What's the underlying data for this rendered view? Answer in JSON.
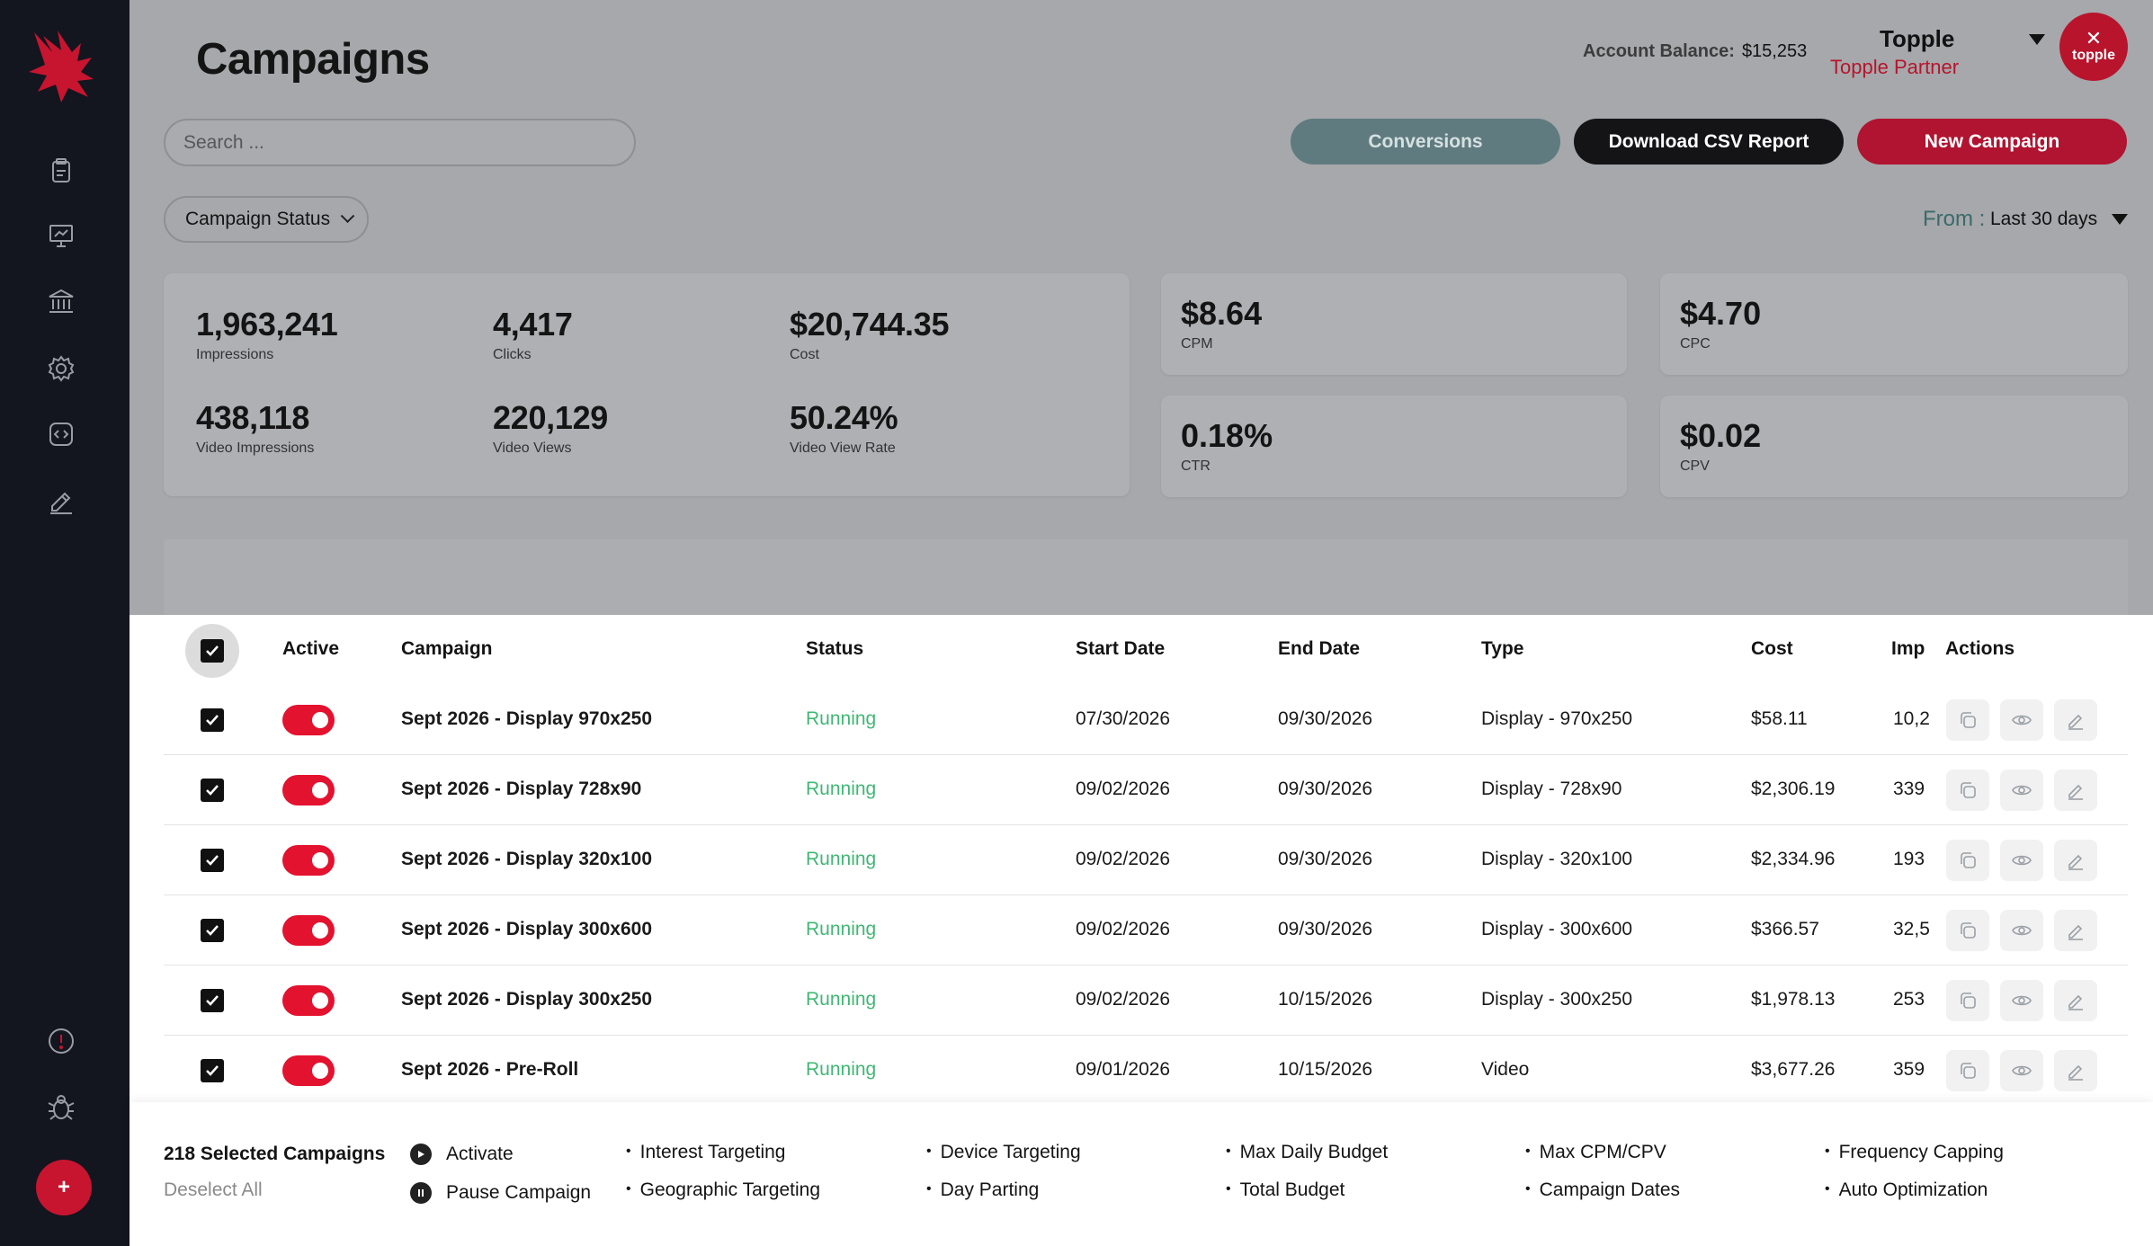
{
  "colors": {
    "sidebar": "#13151f",
    "brand_red": "#b8142c",
    "toggle_on": "#e3122e",
    "status_running": "#3fb873",
    "conversions_btn": "#5f7b80"
  },
  "page": {
    "title": "Campaigns"
  },
  "account": {
    "balance_label": "Account Balance:",
    "balance_value": "$15,253",
    "name": "Topple",
    "role": "Topple Partner",
    "avatar_text": "topple"
  },
  "search": {
    "placeholder": "Search ..."
  },
  "toolbar": {
    "conversions": "Conversions",
    "download_csv": "Download CSV Report",
    "new_campaign": "New Campaign"
  },
  "filters": {
    "campaign_status": "Campaign Status",
    "from_label": "From :",
    "from_value": "Last 30 days"
  },
  "stats": {
    "impressions": {
      "value": "1,963,241",
      "label": "Impressions"
    },
    "clicks": {
      "value": "4,417",
      "label": "Clicks"
    },
    "cost": {
      "value": "$20,744.35",
      "label": "Cost"
    },
    "video_impressions": {
      "value": "438,118",
      "label": "Video Impressions"
    },
    "video_views": {
      "value": "220,129",
      "label": "Video Views"
    },
    "video_view_rate": {
      "value": "50.24%",
      "label": "Video View Rate"
    },
    "cpm": {
      "value": "$8.64",
      "label": "CPM"
    },
    "cpc": {
      "value": "$4.70",
      "label": "CPC"
    },
    "ctr": {
      "value": "0.18%",
      "label": "CTR"
    },
    "cpv": {
      "value": "$0.02",
      "label": "CPV"
    }
  },
  "table": {
    "headers": {
      "active": "Active",
      "campaign": "Campaign",
      "status": "Status",
      "start": "Start Date",
      "end": "End Date",
      "type": "Type",
      "cost": "Cost",
      "imp": "Imp",
      "actions": "Actions"
    },
    "rows": [
      {
        "campaign": "Sept 2026 - Display 970x250",
        "status": "Running",
        "start": "07/30/2026",
        "end": "09/30/2026",
        "type": "Display - 970x250",
        "cost": "$58.11",
        "imp": "10,2"
      },
      {
        "campaign": "Sept 2026 - Display 728x90",
        "status": "Running",
        "start": "09/02/2026",
        "end": "09/30/2026",
        "type": "Display - 728x90",
        "cost": "$2,306.19",
        "imp": "339"
      },
      {
        "campaign": "Sept 2026 - Display 320x100",
        "status": "Running",
        "start": "09/02/2026",
        "end": "09/30/2026",
        "type": "Display - 320x100",
        "cost": "$2,334.96",
        "imp": "193"
      },
      {
        "campaign": "Sept 2026 - Display 300x600",
        "status": "Running",
        "start": "09/02/2026",
        "end": "09/30/2026",
        "type": "Display - 300x600",
        "cost": "$366.57",
        "imp": "32,5"
      },
      {
        "campaign": "Sept 2026 - Display 300x250",
        "status": "Running",
        "start": "09/02/2026",
        "end": "10/15/2026",
        "type": "Display - 300x250",
        "cost": "$1,978.13",
        "imp": "253"
      },
      {
        "campaign": "Sept 2026 - Pre-Roll",
        "status": "Running",
        "start": "09/01/2026",
        "end": "10/15/2026",
        "type": "Video",
        "cost": "$3,677.26",
        "imp": "359"
      }
    ]
  },
  "footer": {
    "selected": "218 Selected Campaigns",
    "deselect": "Deselect All",
    "activate": "Activate",
    "pause": "Pause Campaign",
    "options": [
      "Interest Targeting",
      "Geographic Targeting",
      "Device Targeting",
      "Day Parting",
      "Max Daily Budget",
      "Total Budget",
      "Max CPM/CPV",
      "Campaign Dates",
      "Frequency Capping",
      "Auto Optimization"
    ]
  },
  "icons": {
    "nav": [
      "clipboard-icon",
      "presentation-chart-icon",
      "bank-icon",
      "gear-icon",
      "code-icon",
      "edit-pencil-icon"
    ],
    "bottom": [
      "alert-icon",
      "bug-icon",
      "plus-icon"
    ]
  }
}
